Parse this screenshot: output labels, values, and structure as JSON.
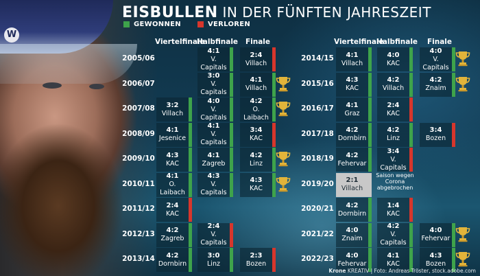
{
  "title": {
    "bold": "EISBULLEN",
    "rest": "IN DER FÜNFTEN JAHRESZEIT"
  },
  "legend": {
    "won": {
      "label": "GEWONNEN",
      "color": "#3ea34b"
    },
    "lost": {
      "label": "VERLOREN",
      "color": "#d7362c"
    }
  },
  "headers": {
    "qf": "Viertelfinale",
    "sf": "Halbfinale",
    "f": "Finale"
  },
  "trophy_icon": "trophy-icon",
  "left_seasons": [
    {
      "season": "2005/06",
      "qf": null,
      "sf": {
        "score": "4:1",
        "opp": "V. Capitals",
        "result": "won"
      },
      "f": {
        "score": "2:4",
        "opp": "Villach",
        "result": "lost"
      },
      "champion": false
    },
    {
      "season": "2006/07",
      "qf": null,
      "sf": {
        "score": "3:0",
        "opp": "V. Capitals",
        "result": "won"
      },
      "f": {
        "score": "4:1",
        "opp": "Villach",
        "result": "won"
      },
      "champion": true
    },
    {
      "season": "2007/08",
      "qf": {
        "score": "3:2",
        "opp": "Villach",
        "result": "won"
      },
      "sf": {
        "score": "4:0",
        "opp": "V. Capitals",
        "result": "won"
      },
      "f": {
        "score": "4:2",
        "opp": "O. Laibach",
        "result": "won"
      },
      "champion": true
    },
    {
      "season": "2008/09",
      "qf": {
        "score": "4:1",
        "opp": "Jesenice",
        "result": "won"
      },
      "sf": {
        "score": "4:1",
        "opp": "V. Capitals",
        "result": "won"
      },
      "f": {
        "score": "3:4",
        "opp": "KAC",
        "result": "lost"
      },
      "champion": false
    },
    {
      "season": "2009/10",
      "qf": {
        "score": "4:3",
        "opp": "KAC",
        "result": "won"
      },
      "sf": {
        "score": "4:1",
        "opp": "Zagreb",
        "result": "won"
      },
      "f": {
        "score": "4:2",
        "opp": "Linz",
        "result": "won"
      },
      "champion": true
    },
    {
      "season": "2010/11",
      "qf": {
        "score": "4:1",
        "opp": "O. Laibach",
        "result": "won"
      },
      "sf": {
        "score": "4:3",
        "opp": "V. Capitals",
        "result": "won"
      },
      "f": {
        "score": "4:3",
        "opp": "KAC",
        "result": "won"
      },
      "champion": true
    },
    {
      "season": "2011/12",
      "qf": {
        "score": "2:4",
        "opp": "KAC",
        "result": "lost"
      },
      "sf": null,
      "f": null,
      "champion": false
    },
    {
      "season": "2012/13",
      "qf": {
        "score": "4:2",
        "opp": "Zagreb",
        "result": "won"
      },
      "sf": {
        "score": "2:4",
        "opp": "V. Capitals",
        "result": "lost"
      },
      "f": null,
      "champion": false
    },
    {
      "season": "2013/14",
      "qf": {
        "score": "4:2",
        "opp": "Dornbirn",
        "result": "won"
      },
      "sf": {
        "score": "3:0",
        "opp": "Linz",
        "result": "won"
      },
      "f": {
        "score": "2:3",
        "opp": "Bozen",
        "result": "lost"
      },
      "champion": false
    }
  ],
  "right_seasons": [
    {
      "season": "2014/15",
      "qf": {
        "score": "4:1",
        "opp": "Villach",
        "result": "won"
      },
      "sf": {
        "score": "4:0",
        "opp": "KAC",
        "result": "won"
      },
      "f": {
        "score": "4:0",
        "opp": "V. Capitals",
        "result": "won"
      },
      "champion": true
    },
    {
      "season": "2015/16",
      "qf": {
        "score": "4:3",
        "opp": "KAC",
        "result": "won"
      },
      "sf": {
        "score": "4:2",
        "opp": "Villach",
        "result": "won"
      },
      "f": {
        "score": "4:2",
        "opp": "Znaim",
        "result": "won"
      },
      "champion": true
    },
    {
      "season": "2016/17",
      "qf": {
        "score": "4:1",
        "opp": "Graz",
        "result": "won"
      },
      "sf": {
        "score": "2:4",
        "opp": "KAC",
        "result": "lost"
      },
      "f": null,
      "champion": false
    },
    {
      "season": "2017/18",
      "qf": {
        "score": "4:2",
        "opp": "Dornbirn",
        "result": "won"
      },
      "sf": {
        "score": "4:2",
        "opp": "Linz",
        "result": "won"
      },
      "f": {
        "score": "3:4",
        "opp": "Bozen",
        "result": "lost"
      },
      "champion": false
    },
    {
      "season": "2018/19",
      "qf": {
        "score": "4:2",
        "opp": "Fehervar",
        "result": "won"
      },
      "sf": {
        "score": "3:4",
        "opp": "V. Capitals",
        "result": "lost"
      },
      "f": null,
      "champion": false
    },
    {
      "season": "2019/20",
      "qf": {
        "score": "2:1",
        "opp": "Villach",
        "result": "special"
      },
      "note": "Saison wegen Corona abgebrochen",
      "sf": null,
      "f": null,
      "champion": false
    },
    {
      "season": "2020/21",
      "qf": {
        "score": "4:2",
        "opp": "Dornbirn",
        "result": "won"
      },
      "sf": {
        "score": "1:4",
        "opp": "KAC",
        "result": "lost"
      },
      "f": null,
      "champion": false
    },
    {
      "season": "2021/22",
      "qf": {
        "score": "4:0",
        "opp": "Znaim",
        "result": "won"
      },
      "sf": {
        "score": "4:2",
        "opp": "V. Capitals",
        "result": "won"
      },
      "f": {
        "score": "4:0",
        "opp": "Fehervar",
        "result": "won"
      },
      "champion": true
    },
    {
      "season": "2022/23",
      "qf": {
        "score": "4:0",
        "opp": "Fehervar",
        "result": "won"
      },
      "sf": {
        "score": "4:1",
        "opp": "KAC",
        "result": "won"
      },
      "f": {
        "score": "4:3",
        "opp": "Bozen",
        "result": "won"
      },
      "champion": true
    }
  ],
  "credit": {
    "brand": "Krone",
    "rest": "KREATIV | Foto: Andreas Tröster, stock.adobe.com"
  }
}
